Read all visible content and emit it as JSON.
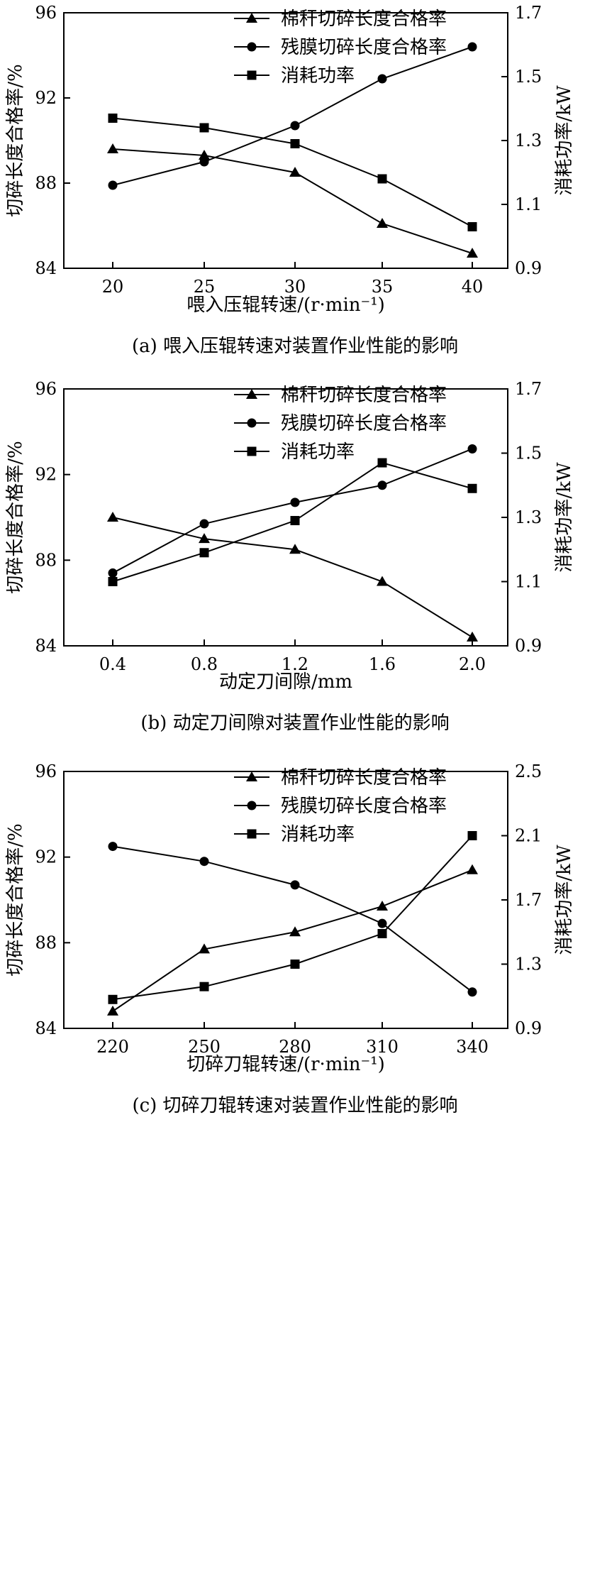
{
  "legend_labels": [
    "棉秆切碎长度合格率",
    "残膜切碎长度合格率",
    "消耗功率"
  ],
  "chart_data": [
    {
      "type": "line",
      "caption": "(a) 喂入压辊转速对装置作业性能的影响",
      "xlabel": "喂入压辊转速/(r·min⁻¹)",
      "ylabel": "切碎长度合格率/%",
      "y2label": "消耗功率/kW",
      "x": [
        20,
        25,
        30,
        35,
        40
      ],
      "x_ticks": [
        "20",
        "25",
        "30",
        "35",
        "40"
      ],
      "ylim": [
        84,
        96
      ],
      "y_ticks": [
        "84",
        "88",
        "92",
        "96"
      ],
      "y2lim": [
        0.9,
        1.7
      ],
      "y2_ticks": [
        "0.9",
        "1.1",
        "1.3",
        "1.5",
        "1.7"
      ],
      "series": [
        {
          "name": "棉秆切碎长度合格率",
          "marker": "triangle",
          "axis": "left",
          "values": [
            89.6,
            89.3,
            88.5,
            86.1,
            84.7
          ]
        },
        {
          "name": "残膜切碎长度合格率",
          "marker": "circle",
          "axis": "left",
          "values": [
            87.9,
            89.0,
            90.7,
            92.9,
            94.4
          ]
        },
        {
          "name": "消耗功率",
          "marker": "square",
          "axis": "right",
          "values": [
            1.37,
            1.34,
            1.29,
            1.18,
            1.03
          ]
        }
      ]
    },
    {
      "type": "line",
      "caption": "(b) 动定刀间隙对装置作业性能的影响",
      "xlabel": "动定刀间隙/mm",
      "ylabel": "切碎长度合格率/%",
      "y2label": "消耗功率/kW",
      "x": [
        0.4,
        0.8,
        1.2,
        1.6,
        2.0
      ],
      "x_ticks": [
        "0.4",
        "0.8",
        "1.2",
        "1.6",
        "2.0"
      ],
      "ylim": [
        84,
        96
      ],
      "y_ticks": [
        "84",
        "88",
        "92",
        "96"
      ],
      "y2lim": [
        0.9,
        1.7
      ],
      "y2_ticks": [
        "0.9",
        "1.1",
        "1.3",
        "1.5",
        "1.7"
      ],
      "series": [
        {
          "name": "棉秆切碎长度合格率",
          "marker": "triangle",
          "axis": "left",
          "values": [
            90.0,
            89.0,
            88.5,
            87.0,
            84.4
          ]
        },
        {
          "name": "残膜切碎长度合格率",
          "marker": "circle",
          "axis": "left",
          "values": [
            87.4,
            89.7,
            90.7,
            91.5,
            93.2
          ]
        },
        {
          "name": "消耗功率",
          "marker": "square",
          "axis": "right",
          "values": [
            1.1,
            1.19,
            1.29,
            1.47,
            1.39
          ]
        }
      ]
    },
    {
      "type": "line",
      "caption": "(c) 切碎刀辊转速对装置作业性能的影响",
      "xlabel": "切碎刀辊转速/(r·min⁻¹)",
      "ylabel": "切碎长度合格率/%",
      "y2label": "消耗功率/kW",
      "x": [
        220,
        250,
        280,
        310,
        340
      ],
      "x_ticks": [
        "220",
        "250",
        "280",
        "310",
        "340"
      ],
      "ylim": [
        84,
        96
      ],
      "y_ticks": [
        "84",
        "88",
        "92",
        "96"
      ],
      "y2lim": [
        0.9,
        2.5
      ],
      "y2_ticks": [
        "0.9",
        "1.3",
        "1.7",
        "2.1",
        "2.5"
      ],
      "series": [
        {
          "name": "棉秆切碎长度合格率",
          "marker": "triangle",
          "axis": "left",
          "values": [
            84.8,
            87.7,
            88.5,
            89.7,
            91.4
          ]
        },
        {
          "name": "残膜切碎长度合格率",
          "marker": "circle",
          "axis": "left",
          "values": [
            92.5,
            91.8,
            90.7,
            88.9,
            85.7
          ]
        },
        {
          "name": "消耗功率",
          "marker": "square",
          "axis": "right",
          "values": [
            1.08,
            1.16,
            1.3,
            1.49,
            2.1
          ]
        }
      ]
    }
  ]
}
